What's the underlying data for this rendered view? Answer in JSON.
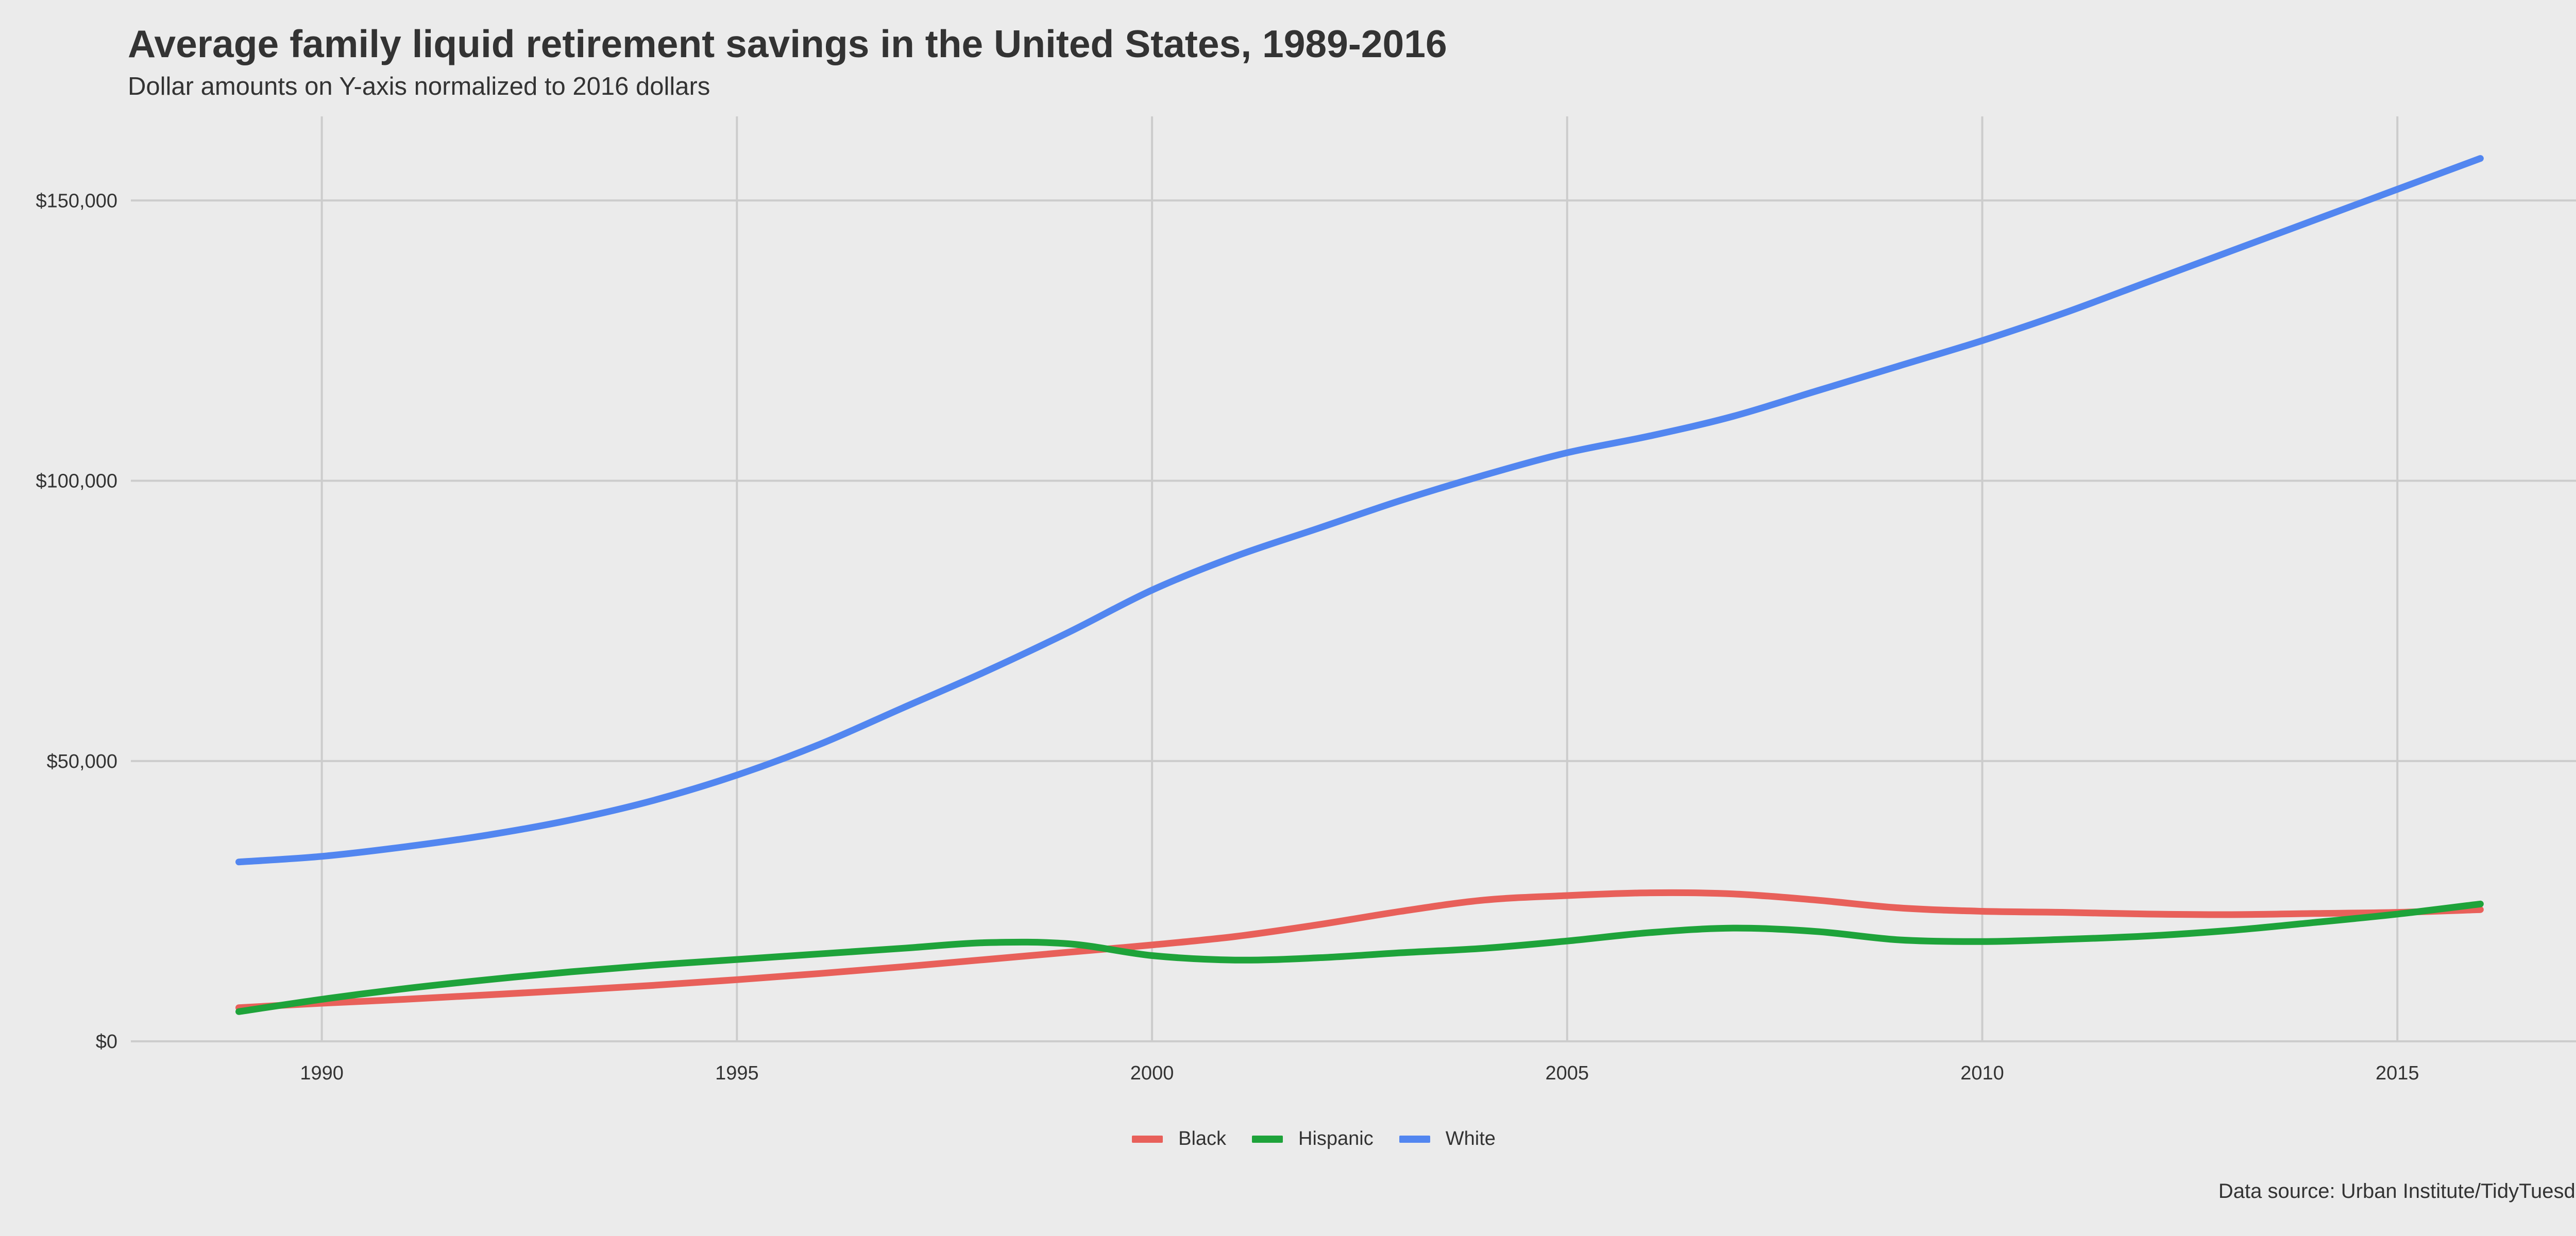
{
  "title": "Average family liquid retirement savings in the United States, 1989-2016",
  "subtitle": "Dollar amounts on Y-axis normalized to 2016 dollars",
  "caption": "Data source: Urban Institute/TidyTuesday",
  "chart_data": {
    "type": "line",
    "title": "Average family liquid retirement savings in the United States, 1989-2016",
    "subtitle": "Dollar amounts on Y-axis normalized to 2016 dollars",
    "xlabel": "",
    "ylabel": "",
    "xlim": [
      1987.7,
      2017.4
    ],
    "ylim": [
      0,
      165000
    ],
    "x_ticks": [
      1990,
      1995,
      2000,
      2005,
      2010,
      2015
    ],
    "x_tick_labels": [
      "1990",
      "1995",
      "2000",
      "2005",
      "2010",
      "2015"
    ],
    "y_ticks": [
      0,
      50000,
      100000,
      150000
    ],
    "y_tick_labels": [
      "$0",
      "$50,000",
      "$100,000",
      "$150,000"
    ],
    "grid": true,
    "legend_position": "bottom",
    "x": [
      1989,
      1990,
      1991,
      1992,
      1993,
      1994,
      1995,
      1996,
      1997,
      1998,
      1999,
      2000,
      2001,
      2002,
      2003,
      2004,
      2005,
      2006,
      2007,
      2008,
      2009,
      2010,
      2011,
      2012,
      2013,
      2014,
      2015,
      2016
    ],
    "series": [
      {
        "name": "Black",
        "color": "#e8605a",
        "values": [
          6000,
          6800,
          7500,
          8300,
          9100,
          10000,
          11000,
          12100,
          13300,
          14600,
          15900,
          17200,
          18700,
          20800,
          23200,
          25200,
          26000,
          26500,
          26300,
          25200,
          23800,
          23200,
          23000,
          22700,
          22600,
          22800,
          23000,
          23500
        ]
      },
      {
        "name": "Hispanic",
        "color": "#1ea33a",
        "values": [
          5300,
          7500,
          9400,
          11000,
          12400,
          13600,
          14600,
          15600,
          16600,
          17600,
          17400,
          15300,
          14500,
          14900,
          15800,
          16600,
          17900,
          19400,
          20200,
          19600,
          18100,
          17800,
          18200,
          18800,
          19800,
          21200,
          22700,
          24500
        ]
      },
      {
        "name": "White",
        "color": "#5286f0",
        "values": [
          32000,
          33000,
          34700,
          36800,
          39500,
          43000,
          47500,
          53000,
          59500,
          66000,
          73000,
          80500,
          86500,
          91500,
          96500,
          101000,
          105000,
          108000,
          111500,
          116000,
          120500,
          125000,
          130000,
          135500,
          141000,
          146500,
          152000,
          157500
        ]
      }
    ]
  }
}
